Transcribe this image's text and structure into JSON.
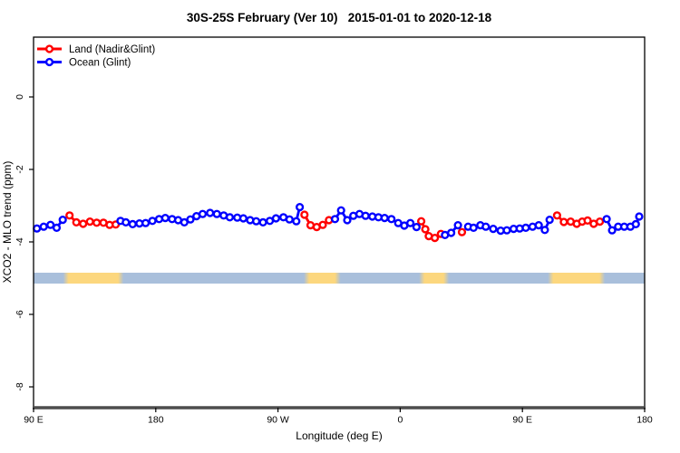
{
  "chart_data": {
    "type": "line",
    "title": "30S-25S February (Ver 10)   2015-01-01 to 2020-12-18",
    "xlabel": "Longitude (deg E)",
    "ylabel": "XCO2 - MLO trend (ppm)",
    "xlim": [
      90,
      540
    ],
    "ylim": [
      -8.58,
      1.65
    ],
    "grid": false,
    "legend_position": "top-left",
    "x_ticks": [
      {
        "pos": 90,
        "label": "90 E"
      },
      {
        "pos": 180,
        "label": "180"
      },
      {
        "pos": 270,
        "label": "90 W"
      },
      {
        "pos": 360,
        "label": "0"
      },
      {
        "pos": 450,
        "label": "90 E"
      },
      {
        "pos": 540,
        "label": "180"
      }
    ],
    "y_ticks": [
      {
        "pos": 0,
        "label": "0"
      },
      {
        "pos": -2,
        "label": "-2"
      },
      {
        "pos": -4,
        "label": "-4"
      },
      {
        "pos": -6,
        "label": "-6"
      },
      {
        "pos": -8,
        "label": "-8"
      }
    ],
    "series": [
      {
        "name": "Land (Nadir&Glint)",
        "color": "#ff0000",
        "marker": "open-circle",
        "points": [
          [
            116.5,
            -3.27
          ],
          [
            121.5,
            -3.46
          ],
          [
            126.5,
            -3.5
          ],
          [
            131.5,
            -3.44
          ],
          [
            136.5,
            -3.47
          ],
          [
            141.5,
            -3.47
          ],
          [
            146,
            -3.53
          ],
          [
            150.5,
            -3.52
          ],
          [
            289.5,
            -3.25
          ],
          [
            294,
            -3.54
          ],
          [
            298.5,
            -3.59
          ],
          [
            303,
            -3.53
          ],
          [
            307.5,
            -3.4
          ],
          [
            375.5,
            -3.43
          ],
          [
            378.5,
            -3.65
          ],
          [
            381,
            -3.84
          ],
          [
            385.5,
            -3.89
          ],
          [
            390,
            -3.78
          ],
          [
            405.5,
            -3.73
          ],
          [
            475.5,
            -3.27
          ],
          [
            480.5,
            -3.45
          ],
          [
            485.5,
            -3.44
          ],
          [
            490,
            -3.5
          ],
          [
            494,
            -3.44
          ],
          [
            498,
            -3.41
          ],
          [
            502.5,
            -3.5
          ],
          [
            507,
            -3.44
          ]
        ]
      },
      {
        "name": "Ocean (Glint)",
        "color": "#0000ff",
        "marker": "open-circle",
        "points": [
          [
            92.5,
            -3.63
          ],
          [
            97.5,
            -3.58
          ],
          [
            102.5,
            -3.53
          ],
          [
            107,
            -3.61
          ],
          [
            111.5,
            -3.39
          ],
          [
            154,
            -3.42
          ],
          [
            158,
            -3.46
          ],
          [
            163,
            -3.51
          ],
          [
            168,
            -3.49
          ],
          [
            172.5,
            -3.48
          ],
          [
            177.5,
            -3.42
          ],
          [
            182.5,
            -3.37
          ],
          [
            187,
            -3.34
          ],
          [
            192,
            -3.37
          ],
          [
            196.5,
            -3.4
          ],
          [
            201,
            -3.46
          ],
          [
            205.5,
            -3.38
          ],
          [
            210,
            -3.29
          ],
          [
            214.5,
            -3.23
          ],
          [
            220,
            -3.2
          ],
          [
            225,
            -3.23
          ],
          [
            230,
            -3.27
          ],
          [
            234.5,
            -3.32
          ],
          [
            240,
            -3.33
          ],
          [
            244.5,
            -3.35
          ],
          [
            249.5,
            -3.4
          ],
          [
            254,
            -3.43
          ],
          [
            259,
            -3.46
          ],
          [
            264,
            -3.42
          ],
          [
            268.5,
            -3.35
          ],
          [
            274,
            -3.32
          ],
          [
            278.5,
            -3.38
          ],
          [
            283.5,
            -3.43
          ],
          [
            286,
            -3.04
          ],
          [
            312,
            -3.37
          ],
          [
            316.5,
            -3.13
          ],
          [
            321,
            -3.4
          ],
          [
            325.5,
            -3.28
          ],
          [
            330,
            -3.23
          ],
          [
            334.5,
            -3.28
          ],
          [
            339.5,
            -3.3
          ],
          [
            344,
            -3.32
          ],
          [
            348.5,
            -3.34
          ],
          [
            353.5,
            -3.37
          ],
          [
            358.5,
            -3.48
          ],
          [
            363,
            -3.55
          ],
          [
            367.5,
            -3.48
          ],
          [
            372,
            -3.59
          ],
          [
            393,
            -3.81
          ],
          [
            397.5,
            -3.75
          ],
          [
            402.5,
            -3.54
          ],
          [
            410,
            -3.58
          ],
          [
            414,
            -3.61
          ],
          [
            419,
            -3.54
          ],
          [
            423,
            -3.58
          ],
          [
            428.5,
            -3.64
          ],
          [
            434,
            -3.69
          ],
          [
            438.5,
            -3.68
          ],
          [
            443.5,
            -3.64
          ],
          [
            448,
            -3.63
          ],
          [
            452.5,
            -3.61
          ],
          [
            457.5,
            -3.58
          ],
          [
            462,
            -3.54
          ],
          [
            466.5,
            -3.67
          ],
          [
            470,
            -3.39
          ],
          [
            512,
            -3.37
          ],
          [
            516,
            -3.68
          ],
          [
            520.5,
            -3.58
          ],
          [
            525,
            -3.58
          ],
          [
            529.5,
            -3.58
          ],
          [
            533.5,
            -3.51
          ],
          [
            536,
            -3.3
          ]
        ]
      }
    ],
    "surface_band": {
      "meaning": "land-ocean indicator strip along longitude",
      "value_top": -4.85,
      "value_bottom": -5.15,
      "ocean_color": "#a9bfdb",
      "land_color": "#fcd77e",
      "land_segments": [
        [
          113.5,
          154
        ],
        [
          291,
          314
        ],
        [
          376,
          394
        ],
        [
          471,
          509
        ]
      ]
    }
  }
}
